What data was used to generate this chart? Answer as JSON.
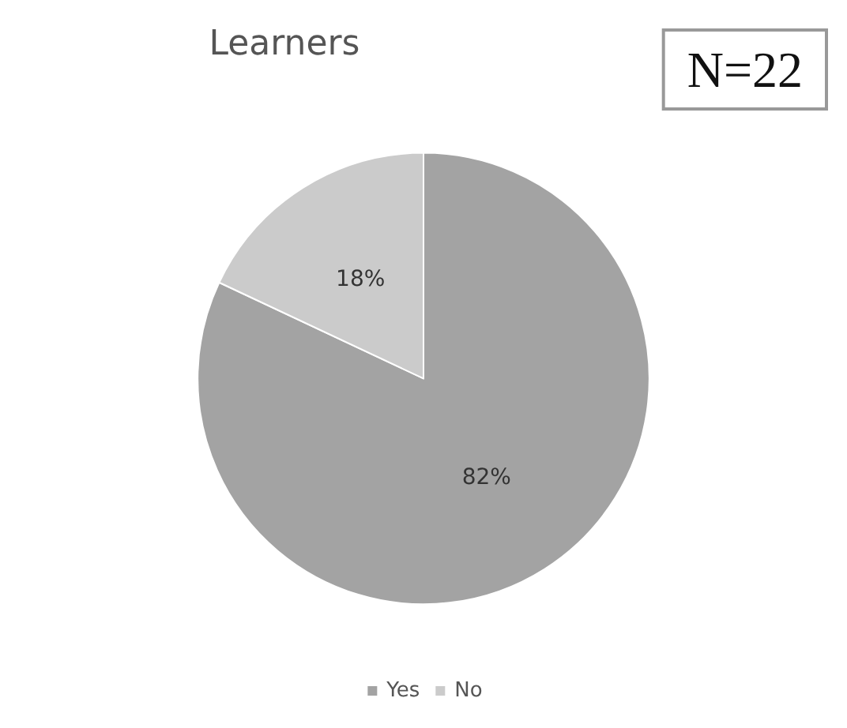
{
  "chart_data": {
    "type": "pie",
    "title": "Learners",
    "categories": [
      "Yes",
      "No"
    ],
    "values": [
      82,
      18
    ],
    "colors": [
      "#a3a3a3",
      "#cbcbcb"
    ],
    "value_labels": [
      "82%",
      "18%"
    ],
    "legend": "bottom",
    "annotations": [
      "N=22"
    ]
  }
}
